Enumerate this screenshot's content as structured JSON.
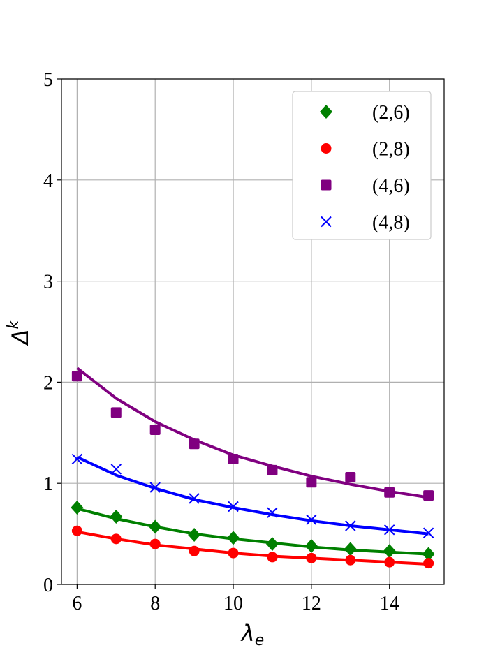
{
  "chart_data": {
    "type": "line",
    "title": "",
    "xlabel": "λe",
    "ylabel": "Δk",
    "xlim": [
      5.6,
      15.4
    ],
    "ylim": [
      0,
      5
    ],
    "xticks": [
      6,
      8,
      10,
      12,
      14
    ],
    "yticks": [
      0,
      1,
      2,
      3,
      4,
      5
    ],
    "grid": true,
    "legend_position": "top-right",
    "x": [
      6,
      7,
      8,
      9,
      10,
      11,
      12,
      13,
      14,
      15
    ],
    "series": [
      {
        "name": "(2,6)",
        "color": "#008000",
        "marker": "diamond",
        "points": [
          0.76,
          0.67,
          0.57,
          0.49,
          0.46,
          0.4,
          0.38,
          0.35,
          0.33,
          0.3
        ],
        "fit": [
          0.75,
          0.65,
          0.57,
          0.5,
          0.45,
          0.41,
          0.37,
          0.34,
          0.32,
          0.3
        ]
      },
      {
        "name": "(2,8)",
        "color": "#ff0000",
        "marker": "circle",
        "points": [
          0.53,
          0.45,
          0.4,
          0.33,
          0.31,
          0.27,
          0.26,
          0.24,
          0.22,
          0.21
        ],
        "fit": [
          0.52,
          0.45,
          0.39,
          0.35,
          0.31,
          0.28,
          0.26,
          0.24,
          0.22,
          0.2
        ]
      },
      {
        "name": "(4,6)",
        "color": "#800080",
        "marker": "square",
        "points": [
          2.06,
          1.7,
          1.53,
          1.39,
          1.24,
          1.13,
          1.01,
          1.06,
          0.91,
          0.88
        ],
        "fit": [
          2.14,
          1.84,
          1.61,
          1.43,
          1.28,
          1.17,
          1.07,
          0.99,
          0.92,
          0.86
        ]
      },
      {
        "name": "(4,8)",
        "color": "#0000ff",
        "marker": "x",
        "points": [
          1.24,
          1.14,
          0.96,
          0.85,
          0.77,
          0.71,
          0.64,
          0.58,
          0.54,
          0.51
        ],
        "fit": [
          1.26,
          1.08,
          0.95,
          0.84,
          0.76,
          0.69,
          0.63,
          0.58,
          0.54,
          0.5
        ]
      }
    ]
  }
}
